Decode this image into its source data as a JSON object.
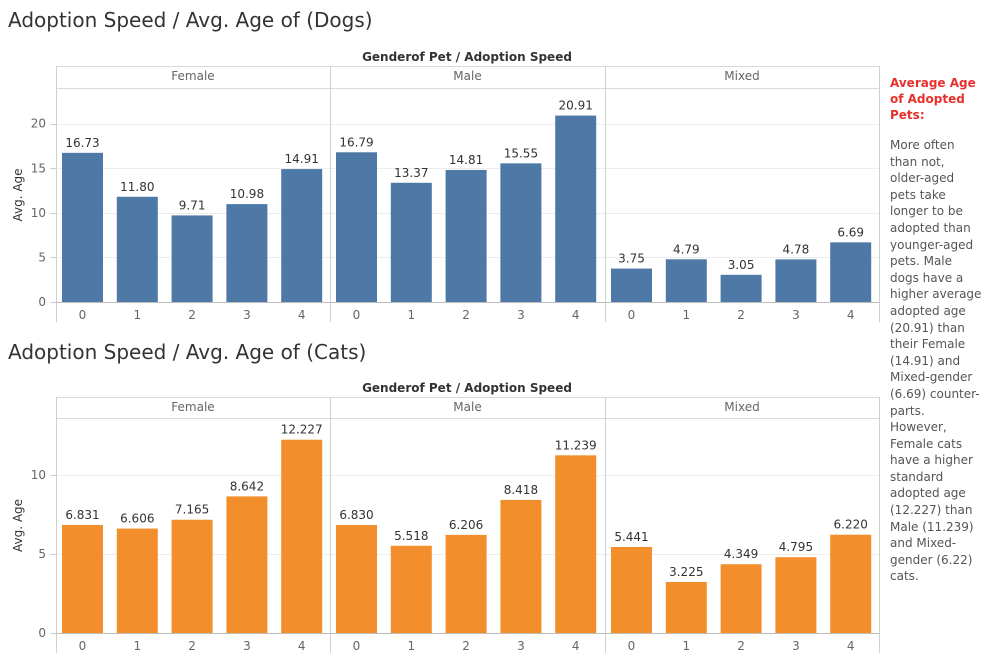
{
  "colors": {
    "dogs": "#4e79a7",
    "cats": "#f28e2b",
    "note_title": "#e8312d"
  },
  "note": {
    "title": "Average Age of Adopted Pets:",
    "body": "More often than not, older-aged pets take longer to be adopted than younger-aged pets. Male dogs have a higher average adopted age (20.91) than their Female (14.91) and Mixed-gender (6.69) counter-parts. However, Female cats have a higher standard adopted age (12.227) than Male (11.239) and Mixed-gender (6.22) cats."
  },
  "chart_data": [
    {
      "id": "dogs",
      "type": "bar",
      "title": "Adoption Speed / Avg. Age of (Dogs)",
      "header": "Genderof Pet  /  Adoption Speed",
      "ylabel": "Avg. Age",
      "ylim": [
        0,
        24
      ],
      "yticks": [
        0,
        5,
        10,
        15,
        20
      ],
      "color": "#4e79a7",
      "categories": [
        "0",
        "1",
        "2",
        "3",
        "4"
      ],
      "panels": [
        {
          "name": "Female",
          "values": [
            16.73,
            11.8,
            9.71,
            10.98,
            14.91
          ],
          "labels": [
            "16.73",
            "11.80",
            "9.71",
            "10.98",
            "14.91"
          ]
        },
        {
          "name": "Male",
          "values": [
            16.79,
            13.37,
            14.81,
            15.55,
            20.91
          ],
          "labels": [
            "16.79",
            "13.37",
            "14.81",
            "15.55",
            "20.91"
          ]
        },
        {
          "name": "Mixed",
          "values": [
            3.75,
            4.79,
            3.05,
            4.78,
            6.69
          ],
          "labels": [
            "3.75",
            "4.79",
            "3.05",
            "4.78",
            "6.69"
          ]
        }
      ]
    },
    {
      "id": "cats",
      "type": "bar",
      "title": "Adoption Speed / Avg. Age of (Cats)",
      "header": "Genderof Pet  /  Adoption Speed",
      "ylabel": "Avg. Age",
      "ylim": [
        0,
        13.6
      ],
      "yticks": [
        0,
        5,
        10
      ],
      "color": "#f28e2b",
      "categories": [
        "0",
        "1",
        "2",
        "3",
        "4"
      ],
      "panels": [
        {
          "name": "Female",
          "values": [
            6.831,
            6.606,
            7.165,
            8.642,
            12.227
          ],
          "labels": [
            "6.831",
            "6.606",
            "7.165",
            "8.642",
            "12.227"
          ]
        },
        {
          "name": "Male",
          "values": [
            6.83,
            5.518,
            6.206,
            8.418,
            11.239
          ],
          "labels": [
            "6.830",
            "5.518",
            "6.206",
            "8.418",
            "11.239"
          ]
        },
        {
          "name": "Mixed",
          "values": [
            5.441,
            3.225,
            4.349,
            4.795,
            6.22
          ],
          "labels": [
            "5.441",
            "3.225",
            "4.349",
            "4.795",
            "6.220"
          ]
        }
      ]
    }
  ]
}
